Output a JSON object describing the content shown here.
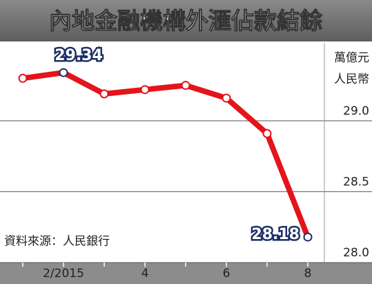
{
  "chart_data": {
    "type": "line",
    "title": "內地金融機構外滙佔款結餘",
    "ylabel": [
      "萬億元",
      "人民幣"
    ],
    "source": "資料來源：人民銀行",
    "categories": [
      null,
      "2/2015",
      null,
      "4",
      null,
      "6",
      null,
      "8"
    ],
    "series": [
      {
        "color": "#e3141c",
        "values": [
          29.3,
          29.34,
          29.19,
          29.22,
          29.25,
          29.16,
          28.91,
          28.18
        ]
      }
    ],
    "value_labels": [
      null,
      "29.34",
      null,
      null,
      null,
      null,
      null,
      "28.18"
    ],
    "ylim": [
      28.0,
      29.55
    ],
    "yticks": [
      {
        "value": 28.0,
        "label": "28.0"
      },
      28.5,
      {
        "value": 29.0,
        "label": "29.0"
      }
    ],
    "grid": true
  }
}
